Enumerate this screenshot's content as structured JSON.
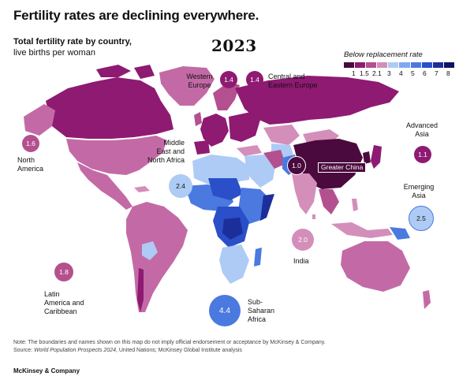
{
  "title": "Fertility rates are declining everywhere.",
  "subtitle_bold": "Total fertility rate by country,",
  "subtitle_rest": "live births per woman",
  "year": "2023",
  "legend": {
    "title": "Below replacement rate",
    "ticks": [
      "1",
      "1.5",
      "2.1",
      "3",
      "4",
      "5",
      "6",
      "7",
      "8"
    ],
    "colors": [
      "#4a0a3d",
      "#8e1a72",
      "#b4508f",
      "#d38fba",
      "#aecbf5",
      "#7fa8ef",
      "#4a79e0",
      "#2a4fc8",
      "#1b2e9a",
      "#0e1460"
    ]
  },
  "regions": [
    {
      "name": "Western Europe",
      "value": "1.4"
    },
    {
      "name": "Central and Eastern Europe",
      "value": "1.4"
    },
    {
      "name": "Advanced Asia",
      "value": "1.1"
    },
    {
      "name": "North America",
      "value": "1.6"
    },
    {
      "name": "Middle East and North Africa",
      "value": "2.4"
    },
    {
      "name": "Greater China",
      "value": "1.0"
    },
    {
      "name": "Emerging Asia",
      "value": "2.5"
    },
    {
      "name": "India",
      "value": "2.0"
    },
    {
      "name": "Latin America and Caribbean",
      "value": "1.8"
    },
    {
      "name": "Sub-Saharan Africa",
      "value": "4.4"
    }
  ],
  "labels": {
    "western_europe": [
      "Western",
      "Europe"
    ],
    "central_europe": [
      "Central and",
      "Eastern Europe"
    ],
    "advanced_asia": [
      "Advanced",
      "Asia"
    ],
    "north_america": [
      "North",
      "America"
    ],
    "mena": [
      "Middle",
      "East and",
      "North Africa"
    ],
    "emerging_asia": [
      "Emerging",
      "Asia"
    ],
    "india": [
      "India"
    ],
    "latam": [
      "Latin",
      "America and",
      "Caribbean"
    ],
    "ssa": [
      "Sub-",
      "Saharan",
      "Africa"
    ],
    "greater_china": "Greater China"
  },
  "note_line1": "Note: The boundaries and names shown on this map do not imply official endorsement or acceptance by McKinsey & Company.",
  "note_line2_prefix": "Source: ",
  "note_line2_italic": "World Population Prospects 2024",
  "note_line2_rest": ", United Nations; McKinsey Global Institute analysis",
  "brand": "McKinsey & Company"
}
